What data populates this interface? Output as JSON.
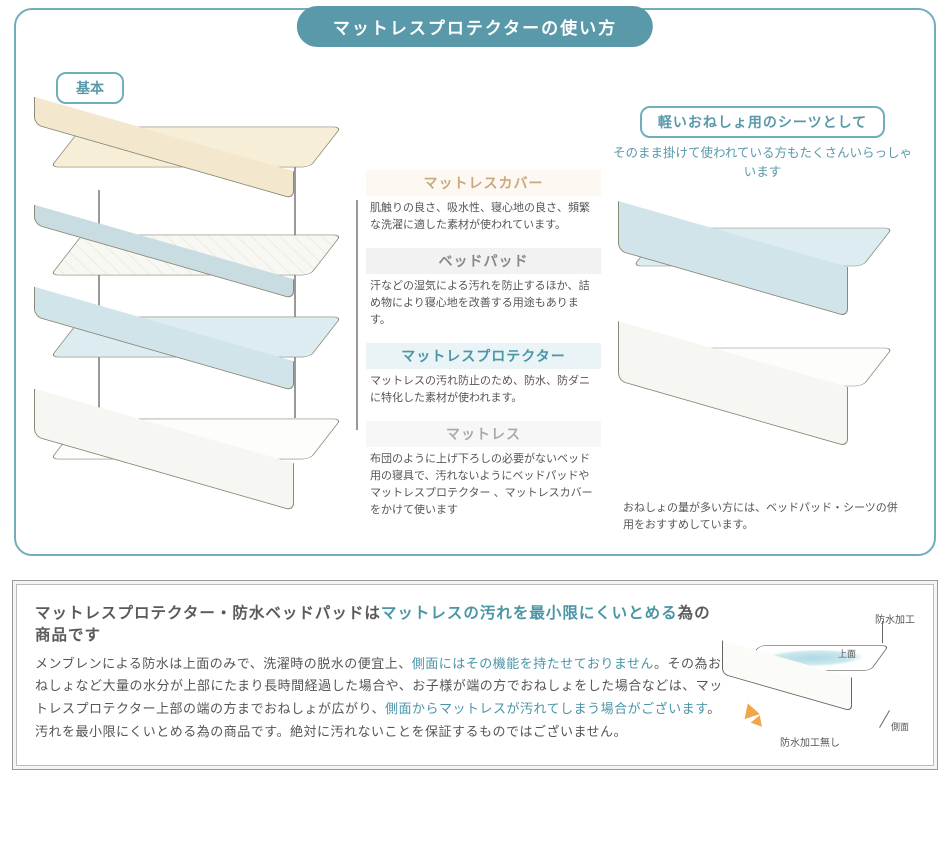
{
  "panel1": {
    "title": "マットレスプロテクターの使い方",
    "basic_label": "基本",
    "layers": {
      "cover": {
        "title": "マットレスカバー",
        "desc": "肌触りの良さ、吸水性、寝心地の良さ、頻繁な洗濯に適した素材が使われています。",
        "title_color": "#c9a97e",
        "title_bg": "#fdf8f1",
        "fill": "#f7eed8"
      },
      "pad": {
        "title": "ベッドパッド",
        "desc": "汗などの湿気による汚れを防止するほか、詰め物により寝心地を改善する用途もあります。",
        "title_color": "#888888",
        "title_bg": "#f2f2f2",
        "fill": "#f7f7f3"
      },
      "protector": {
        "title": "マットレスプロテクター",
        "desc": "マットレスの汚れ防止のため、防水、防ダニに特化した素材が使われます。",
        "title_color": "#4a95a6",
        "title_bg": "#eaf3f6",
        "fill": "#dcecf0"
      },
      "mattress": {
        "title": "マットレス",
        "desc": "布団のように上げ下ろしの必要がないベッド用の寝具で、汚れないようにベッドパッドやマットレスプロテクター 、マットレスカバーをかけて使います",
        "title_color": "#aaaaaa",
        "title_bg": "#f7f7f7",
        "fill": "#fdfdfb"
      }
    },
    "right": {
      "pill": "軽いおねしょ用のシーツとして",
      "sub": "そのまま掛けて使われている方もたくさんいらっしゃいます",
      "note": "おねしょの量が多い方には、ベッドパッド・シーツの併用をおすすめしています。"
    },
    "colors": {
      "border": "#72adbc",
      "title_bg": "#5a99a9",
      "outline": "#8a8a78"
    }
  },
  "panel2": {
    "heading_pre": "マットレスプロテクター・防水ベッドパッドは",
    "heading_hl": "マットレスの汚れを最小限にくいとめる",
    "heading_post": "為の商品です",
    "body_1": "メンブレンによる防水は上面のみで、洗濯時の脱水の便宜上、",
    "body_hl1": "側面にはその機能を持たせておりません",
    "body_2": "。その為おねしょなど大量の水分が上部にたまり長時間経過した場合や、お子様が端の方でおねしょをした場合などは、マットレスプロテクター上部の端の方までおねしょが広がり、",
    "body_hl2": "側面からマットレスが汚れてしまう場合がございます",
    "body_3": "。汚れを最小限にくいとめる為の商品です。絶対に汚れないことを保証するものではございません。",
    "fig": {
      "label_top": "防水加工",
      "label_joumen": "上面",
      "label_sokumen": "側面",
      "label_bottom": "防水加工無し",
      "water_color": "#aed8e4",
      "flash_color": "#f2a64a"
    },
    "colors": {
      "hl": "#4a95a6",
      "text": "#555555"
    }
  }
}
